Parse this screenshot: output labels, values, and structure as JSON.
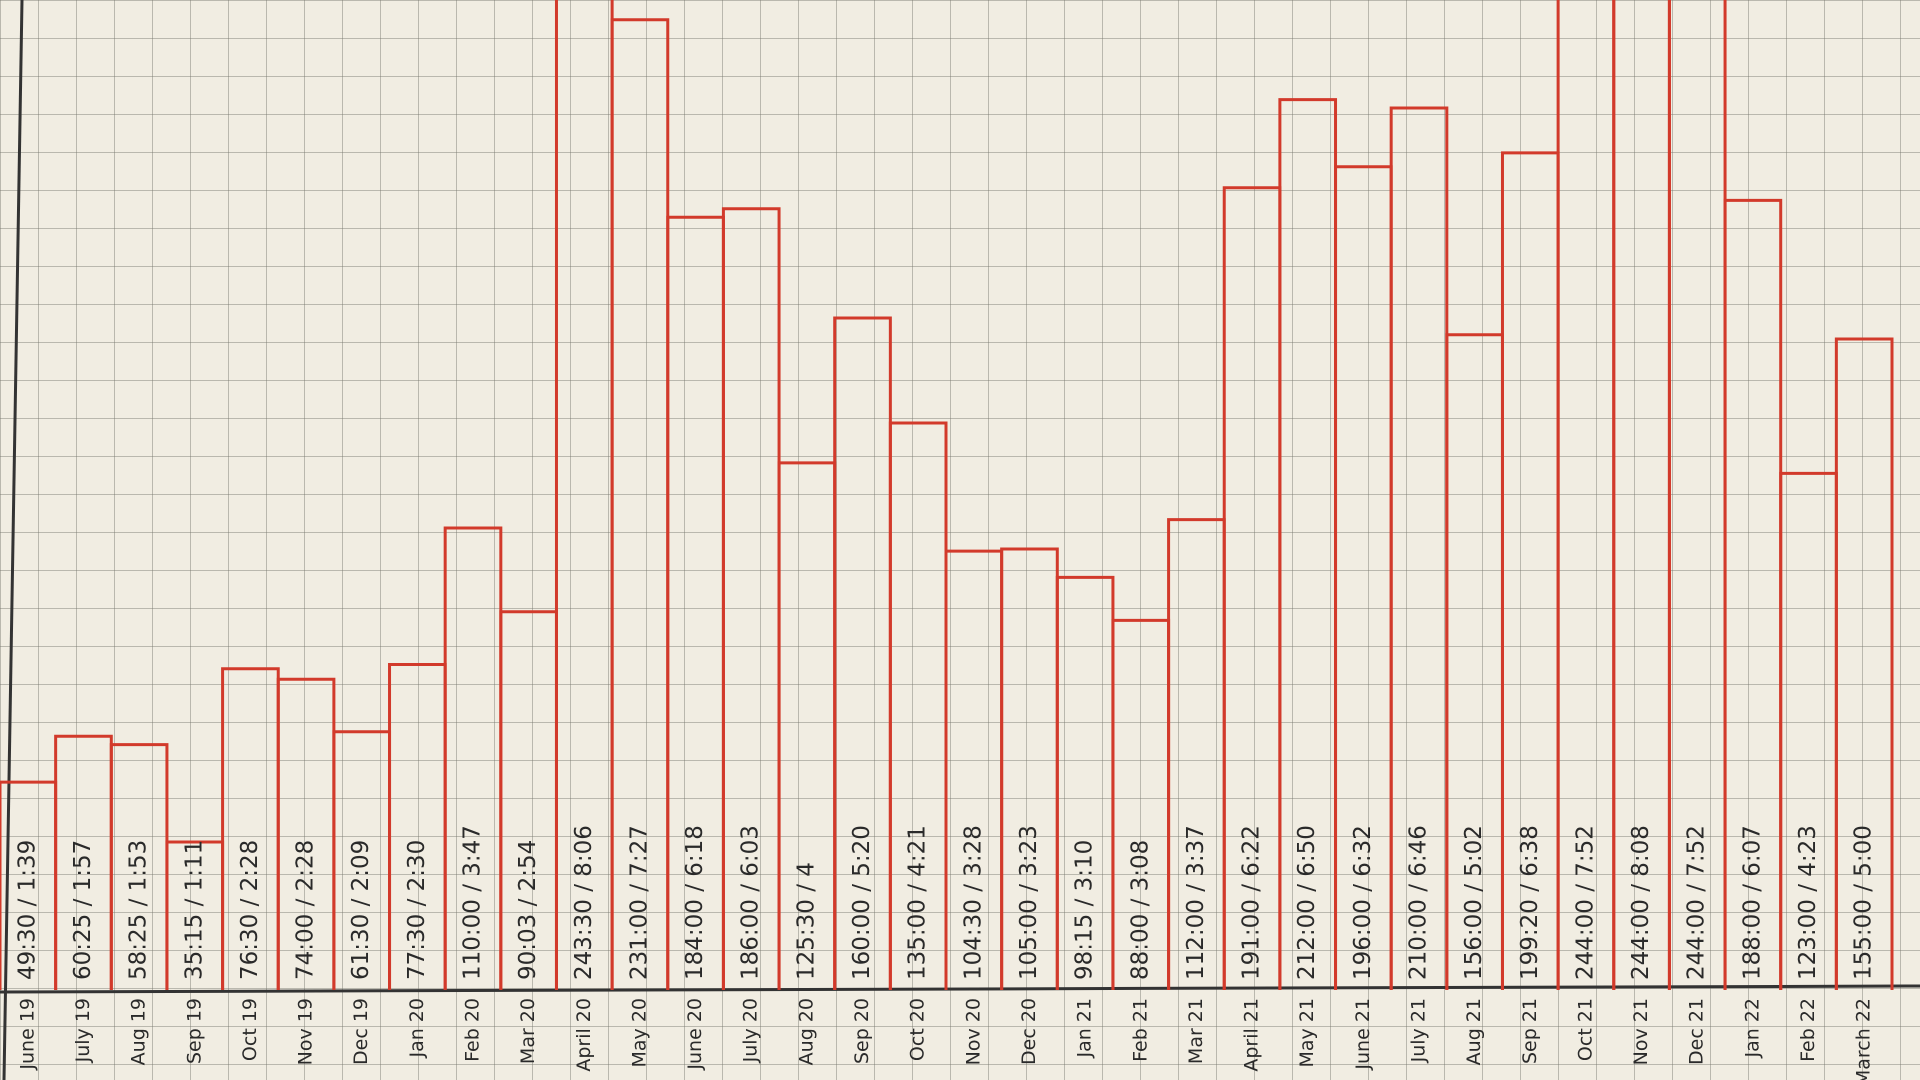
{
  "chart_data": {
    "type": "bar",
    "categories": [
      "June 19",
      "July 19",
      "Aug 19",
      "Sep 19",
      "Oct 19",
      "Nov 19",
      "Dec 19",
      "Jan 20",
      "Feb 20",
      "Mar 20",
      "April 20",
      "May 20",
      "June 20",
      "July 20",
      "Aug 20",
      "Sep 20",
      "Oct 20",
      "Nov 20",
      "Dec 20",
      "Jan 21",
      "Feb 21",
      "Mar 21",
      "April 21",
      "May 21",
      "June 21",
      "July 21",
      "Aug 21",
      "Sep 21",
      "Oct 21",
      "Nov 21",
      "Dec 21",
      "Jan 22",
      "Feb 22",
      "March 22"
    ],
    "values": [
      49.5,
      60.42,
      58.42,
      35.25,
      76.5,
      74,
      61.5,
      77.5,
      110,
      90.05,
      243.5,
      231,
      184,
      186,
      125.5,
      160,
      135,
      104.5,
      105,
      98.25,
      88,
      112,
      191,
      212,
      196,
      210,
      156,
      199.33,
      244,
      244,
      244,
      188,
      123,
      155
    ],
    "value_labels": [
      "49:30 / 1:39",
      "60:25 / 1:57",
      "58:25 / 1:53",
      "35:15 / 1:11",
      "76:30 / 2:28",
      "74:00 / 2:28",
      "61:30 / 2:09",
      "77:30 / 2:30",
      "110:00 / 3:47",
      "90:03 / 2:54",
      "243:30 / 8:06",
      "231:00 / 7:27",
      "184:00 / 6:18",
      "186:00 / 6:03",
      "125:30 / 4",
      "160:00 / 5:20",
      "135:00 / 4:21",
      "104:30 / 3:28",
      "105:00 / 3:23",
      "98:15 / 3:10",
      "88:00 / 3:08",
      "112:00 / 3:37",
      "191:00 / 6:22",
      "212:00 / 6:50",
      "196:00 / 6:32",
      "210:00 / 6:46",
      "156:00 / 5:02",
      "199:20 / 6:38",
      "244:00 / 7:52",
      "244:00 / 8:08",
      "244:00 / 7:52",
      "188:00 / 6:07",
      "123:00 / 4:23",
      "155:00 / 5:00"
    ],
    "color": "#d23a2b"
  }
}
